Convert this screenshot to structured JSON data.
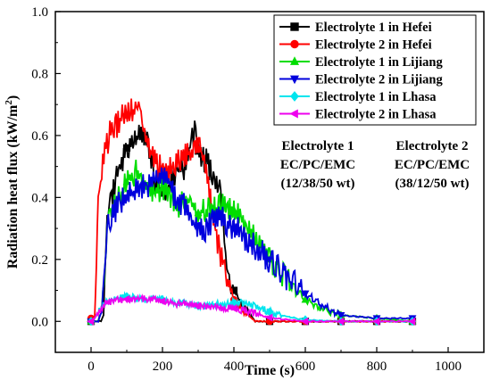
{
  "chart_data": {
    "type": "line",
    "xlabel": "Time (s)",
    "ylabel_main": "Radiation heat flux (kW/m",
    "ylabel_sup": "2",
    "ylabel_close": ")",
    "xlim": [
      -100,
      1100
    ],
    "ylim": [
      -0.1,
      1.0
    ],
    "x_ticks": [
      0,
      200,
      400,
      600,
      800,
      1000
    ],
    "x_tick_labels": [
      "0",
      "200",
      "400",
      "600",
      "800",
      "1000"
    ],
    "y_ticks": [
      0.0,
      0.2,
      0.4,
      0.6,
      0.8,
      1.0
    ],
    "y_tick_labels": [
      "0.0",
      "0.2",
      "0.4",
      "0.6",
      "0.8",
      "1.0"
    ],
    "grid": false,
    "legend_position": "top-right",
    "annotations": [
      {
        "id": "electrolyte-1",
        "lines": [
          "Electrolyte 1",
          "EC/PC/EMC",
          "(12/38/50 wt)"
        ]
      },
      {
        "id": "electrolyte-2",
        "lines": [
          "Electrolyte 2",
          "EC/PC/EMC",
          "(38/12/50 wt)"
        ]
      }
    ],
    "series": [
      {
        "name": "Electrolyte 1 in Hefei",
        "color": "#000000",
        "marker": "square",
        "x": [
          0,
          20,
          28,
          35,
          45,
          60,
          80,
          100,
          120,
          140,
          160,
          180,
          200,
          220,
          240,
          260,
          280,
          290,
          300,
          320,
          340,
          360,
          370,
          380,
          390,
          400,
          420,
          440,
          460,
          500,
          600,
          700,
          800,
          900
        ],
        "y": [
          0.0,
          0.0,
          0.0,
          0.02,
          0.3,
          0.42,
          0.5,
          0.56,
          0.58,
          0.6,
          0.57,
          0.45,
          0.42,
          0.43,
          0.48,
          0.5,
          0.56,
          0.62,
          0.55,
          0.52,
          0.48,
          0.42,
          0.3,
          0.2,
          0.14,
          0.1,
          0.06,
          0.03,
          0.0,
          0.0,
          0.0,
          0.0,
          0.0,
          0.0
        ]
      },
      {
        "name": "Electrolyte 2 in Hefei",
        "color": "#ff0000",
        "marker": "circle",
        "x": [
          0,
          10,
          15,
          20,
          30,
          50,
          70,
          90,
          110,
          130,
          140,
          150,
          170,
          190,
          210,
          230,
          250,
          270,
          290,
          310,
          320,
          340,
          360,
          380,
          400,
          420,
          440,
          460,
          500,
          600,
          700,
          800,
          900
        ],
        "y": [
          0.01,
          0.01,
          0.2,
          0.4,
          0.5,
          0.6,
          0.63,
          0.66,
          0.67,
          0.7,
          0.65,
          0.6,
          0.55,
          0.5,
          0.48,
          0.5,
          0.52,
          0.54,
          0.55,
          0.56,
          0.5,
          0.35,
          0.22,
          0.14,
          0.07,
          0.04,
          0.02,
          0.0,
          0.0,
          0.0,
          0.0,
          0.0,
          0.0
        ]
      },
      {
        "name": "Electrolyte 1 in Lijiang",
        "color": "#00dd00",
        "marker": "triangle-up",
        "x": [
          0,
          20,
          30,
          45,
          60,
          80,
          100,
          120,
          140,
          160,
          180,
          200,
          220,
          240,
          260,
          280,
          300,
          320,
          340,
          360,
          380,
          400,
          420,
          440,
          460,
          480,
          500,
          550,
          600,
          650,
          700,
          800,
          900
        ],
        "y": [
          0.0,
          0.0,
          0.05,
          0.3,
          0.37,
          0.4,
          0.45,
          0.48,
          0.47,
          0.44,
          0.41,
          0.43,
          0.4,
          0.37,
          0.4,
          0.38,
          0.35,
          0.35,
          0.36,
          0.37,
          0.38,
          0.36,
          0.33,
          0.3,
          0.27,
          0.24,
          0.2,
          0.13,
          0.07,
          0.04,
          0.02,
          0.01,
          0.0
        ]
      },
      {
        "name": "Electrolyte 2 in Lijiang",
        "color": "#0000dd",
        "marker": "triangle-down",
        "x": [
          0,
          20,
          30,
          45,
          60,
          80,
          100,
          120,
          140,
          160,
          180,
          200,
          220,
          240,
          260,
          280,
          300,
          320,
          340,
          360,
          380,
          400,
          420,
          440,
          460,
          480,
          500,
          550,
          600,
          650,
          700,
          800,
          900
        ],
        "y": [
          0.0,
          0.0,
          0.04,
          0.3,
          0.35,
          0.38,
          0.4,
          0.42,
          0.43,
          0.44,
          0.46,
          0.47,
          0.44,
          0.4,
          0.37,
          0.33,
          0.31,
          0.3,
          0.32,
          0.33,
          0.32,
          0.3,
          0.29,
          0.26,
          0.24,
          0.22,
          0.2,
          0.14,
          0.09,
          0.05,
          0.02,
          0.01,
          0.01
        ]
      },
      {
        "name": "Electrolyte 1 in Lhasa",
        "color": "#00e5ee",
        "marker": "diamond",
        "x": [
          0,
          10,
          20,
          40,
          60,
          80,
          100,
          120,
          140,
          160,
          180,
          200,
          220,
          240,
          260,
          280,
          300,
          320,
          340,
          360,
          380,
          400,
          420,
          440,
          460,
          480,
          500,
          550,
          600,
          700,
          800,
          900
        ],
        "y": [
          0.0,
          0.01,
          0.03,
          0.06,
          0.07,
          0.075,
          0.08,
          0.075,
          0.07,
          0.07,
          0.075,
          0.07,
          0.065,
          0.06,
          0.058,
          0.055,
          0.05,
          0.05,
          0.052,
          0.055,
          0.058,
          0.06,
          0.06,
          0.055,
          0.048,
          0.04,
          0.03,
          0.015,
          0.005,
          0.0,
          0.0,
          0.0
        ]
      },
      {
        "name": "Electrolyte 2 in Lhasa",
        "color": "#ee00ee",
        "marker": "triangle-left",
        "x": [
          0,
          10,
          20,
          40,
          60,
          80,
          100,
          120,
          140,
          160,
          180,
          200,
          220,
          240,
          260,
          280,
          300,
          320,
          340,
          360,
          380,
          400,
          420,
          440,
          460,
          480,
          500,
          550,
          600,
          700,
          800,
          900
        ],
        "y": [
          0.0,
          0.01,
          0.03,
          0.06,
          0.065,
          0.07,
          0.072,
          0.075,
          0.073,
          0.07,
          0.068,
          0.065,
          0.062,
          0.058,
          0.055,
          0.052,
          0.05,
          0.048,
          0.047,
          0.045,
          0.044,
          0.042,
          0.038,
          0.032,
          0.025,
          0.018,
          0.012,
          0.005,
          0.0,
          0.0,
          0.0,
          0.0
        ]
      }
    ]
  }
}
